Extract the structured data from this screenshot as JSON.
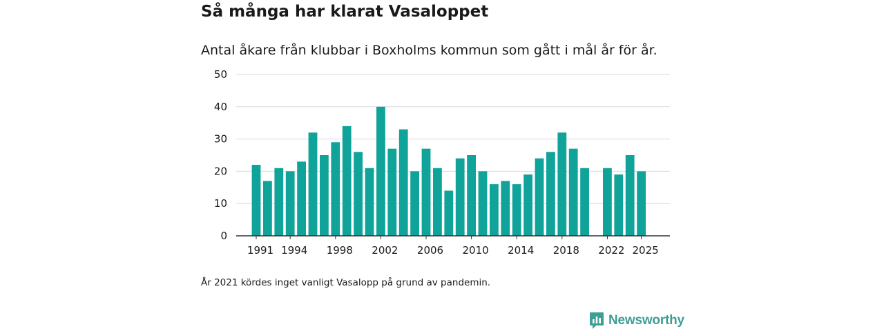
{
  "title": "Så många har klarat Vasaloppet",
  "subtitle": "Antal åkare från klubbar i Boxholms kommun som gått i mål år för år.",
  "note": "År 2021 kördes inget vanligt Vasalopp på grund av pandemin.",
  "brand": {
    "name": "Newsworthy",
    "icon": "newsworthy-logo-icon",
    "color": "#3d9e94"
  },
  "colors": {
    "bar": "#10a39a",
    "grid": "#d9d9d9",
    "axis": "#333333"
  },
  "chart_data": {
    "type": "bar",
    "title": "Så många har klarat Vasaloppet",
    "xlabel": "",
    "ylabel": "",
    "ylim": [
      0,
      50
    ],
    "yticks": [
      0,
      10,
      20,
      30,
      40,
      50
    ],
    "xtick_labels": [
      "1991",
      "1994",
      "1998",
      "2002",
      "2006",
      "2010",
      "2014",
      "2018",
      "2022",
      "2025"
    ],
    "categories": [
      1991,
      1992,
      1993,
      1994,
      1995,
      1996,
      1997,
      1998,
      1999,
      2000,
      2001,
      2002,
      2003,
      2004,
      2005,
      2006,
      2007,
      2008,
      2009,
      2010,
      2011,
      2012,
      2013,
      2014,
      2015,
      2016,
      2017,
      2018,
      2019,
      2020,
      2021,
      2022,
      2023,
      2024,
      2025
    ],
    "values": [
      22,
      17,
      21,
      20,
      23,
      32,
      25,
      29,
      34,
      26,
      21,
      40,
      27,
      33,
      20,
      27,
      21,
      14,
      24,
      25,
      20,
      16,
      17,
      16,
      19,
      24,
      26,
      32,
      27,
      21,
      null,
      21,
      19,
      25,
      20
    ],
    "grid": true,
    "legend": "none"
  }
}
